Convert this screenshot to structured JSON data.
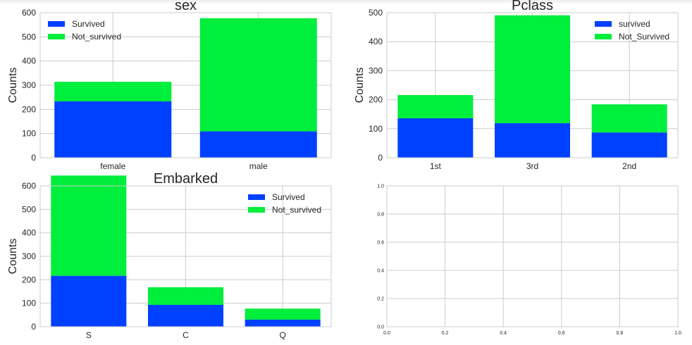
{
  "chart_data": [
    {
      "type": "bar",
      "title": "sex",
      "xlabel": "",
      "ylabel": "Counts",
      "categories": [
        "female",
        "male"
      ],
      "stacked": true,
      "ylim": [
        0,
        600
      ],
      "yticks": [
        0,
        100,
        200,
        300,
        400,
        500,
        600
      ],
      "series": [
        {
          "name": "Survived",
          "values": [
            233,
            109
          ],
          "color": "#0041ff"
        },
        {
          "name": "Not_survived",
          "values": [
            81,
            468
          ],
          "color": "#00ee3c"
        }
      ],
      "legend": "top-left",
      "grid": true
    },
    {
      "type": "bar",
      "title": "Pclass",
      "xlabel": "",
      "ylabel": "Counts",
      "categories": [
        "1st",
        "3rd",
        "2nd"
      ],
      "stacked": true,
      "ylim": [
        0,
        500
      ],
      "yticks": [
        0,
        100,
        200,
        300,
        400,
        500
      ],
      "series": [
        {
          "name": "survived",
          "values": [
            136,
            119,
            87
          ],
          "color": "#0041ff"
        },
        {
          "name": "Not_Survived",
          "values": [
            80,
            372,
            97
          ],
          "color": "#00ee3c"
        }
      ],
      "legend": "top-right",
      "grid": true
    },
    {
      "type": "bar",
      "title": "Embarked",
      "xlabel": "",
      "ylabel": "Counts",
      "categories": [
        "S",
        "C",
        "Q"
      ],
      "stacked": true,
      "ylim": [
        0,
        600
      ],
      "yticks": [
        0,
        100,
        200,
        300,
        400,
        500,
        600
      ],
      "series": [
        {
          "name": "Survived",
          "values": [
            217,
            93,
            30
          ],
          "color": "#0041ff"
        },
        {
          "name": "Not_survived",
          "values": [
            427,
            75,
            47
          ],
          "color": "#00ee3c"
        }
      ],
      "legend": "top-right",
      "grid": true
    },
    {
      "type": "scatter",
      "title": "",
      "xlabel": "",
      "ylabel": "",
      "xlim": [
        0,
        1
      ],
      "ylim": [
        0,
        1
      ],
      "xticks": [
        "0.0",
        "0.2",
        "0.4",
        "0.6",
        "0.8",
        "1.0"
      ],
      "yticks": [
        "0.0",
        "0.2",
        "0.4",
        "0.6",
        "0.8",
        "1.0"
      ],
      "series": [],
      "grid": true
    }
  ]
}
